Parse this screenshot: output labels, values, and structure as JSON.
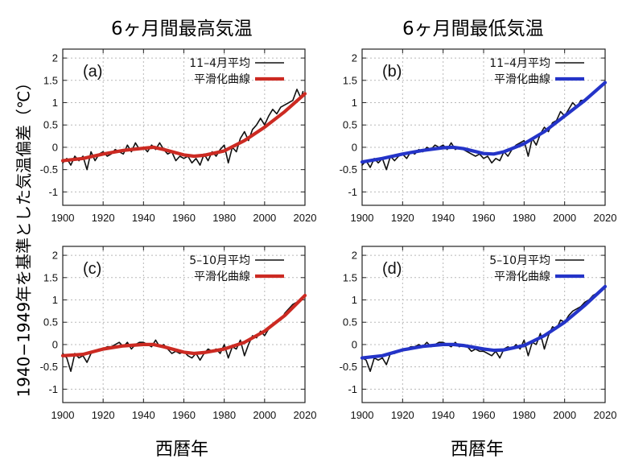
{
  "column_titles": [
    "6ヶ月間最高気温",
    "6ヶ月間最低気温"
  ],
  "xlabel": "西暦年",
  "ylabel": "1940−1949年を基準とした気温偏差（℃）",
  "colors": {
    "raw": "#111111",
    "smooth_red": "#cc2a22",
    "smooth_blue": "#2434c8",
    "grid": "#b8b8b8"
  },
  "chart_data": [
    {
      "type": "line",
      "panel": "(a)",
      "xlim": [
        1900,
        2020
      ],
      "ylim": [
        -1.3,
        2.2
      ],
      "x_ticks": [
        "1900",
        "1920",
        "1940",
        "1960",
        "1980",
        "2000",
        "2020"
      ],
      "y_ticks": [
        "2",
        "1.5",
        "1",
        "0.5",
        "0",
        "-0.5",
        "-1"
      ],
      "legend": [
        "11–4月平均",
        "平滑化曲線"
      ],
      "series": [
        {
          "name": "11–4月平均",
          "color": "#111111",
          "x": [
            1900,
            1902,
            1904,
            1906,
            1908,
            1910,
            1912,
            1914,
            1916,
            1918,
            1920,
            1922,
            1924,
            1926,
            1928,
            1930,
            1932,
            1934,
            1936,
            1938,
            1940,
            1942,
            1944,
            1946,
            1948,
            1950,
            1952,
            1954,
            1956,
            1958,
            1960,
            1962,
            1964,
            1966,
            1968,
            1970,
            1972,
            1974,
            1976,
            1978,
            1980,
            1982,
            1984,
            1986,
            1988,
            1990,
            1992,
            1994,
            1996,
            1998,
            2000,
            2002,
            2004,
            2006,
            2008,
            2010,
            2012,
            2014,
            2016,
            2018,
            2019
          ],
          "y": [
            -0.35,
            -0.25,
            -0.4,
            -0.2,
            -0.3,
            -0.2,
            -0.5,
            -0.1,
            -0.3,
            -0.15,
            -0.1,
            -0.2,
            -0.15,
            -0.05,
            -0.1,
            -0.15,
            0.05,
            -0.1,
            0.1,
            -0.05,
            0.0,
            -0.1,
            0.05,
            -0.05,
            0.1,
            -0.05,
            -0.15,
            -0.1,
            -0.3,
            -0.2,
            -0.25,
            -0.2,
            -0.35,
            -0.25,
            -0.4,
            -0.15,
            -0.3,
            -0.1,
            -0.2,
            -0.05,
            0.05,
            -0.35,
            0.0,
            -0.1,
            0.2,
            0.35,
            0.15,
            0.4,
            0.5,
            0.65,
            0.5,
            0.7,
            0.85,
            0.75,
            0.9,
            0.95,
            1.0,
            1.05,
            1.3,
            1.1,
            1.25
          ]
        },
        {
          "name": "平滑化曲線",
          "color": "#cc2a22",
          "x": [
            1900,
            1910,
            1920,
            1930,
            1940,
            1945,
            1950,
            1960,
            1965,
            1970,
            1980,
            1990,
            2000,
            2010,
            2020
          ],
          "y": [
            -0.3,
            -0.25,
            -0.15,
            -0.07,
            -0.02,
            0.0,
            -0.05,
            -0.17,
            -0.2,
            -0.18,
            -0.08,
            0.15,
            0.45,
            0.8,
            1.2
          ]
        }
      ]
    },
    {
      "type": "line",
      "panel": "(b)",
      "xlim": [
        1900,
        2020
      ],
      "ylim": [
        -1.3,
        2.2
      ],
      "x_ticks": [
        "1900",
        "1920",
        "1940",
        "1960",
        "1980",
        "2000",
        "2020"
      ],
      "y_ticks": [
        "2",
        "1.5",
        "1",
        "0.5",
        "0",
        "-0.5",
        "-1"
      ],
      "legend": [
        "11–4月平均",
        "平滑化曲線"
      ],
      "series": [
        {
          "name": "11–4月平均",
          "color": "#111111",
          "x": [
            1900,
            1902,
            1904,
            1906,
            1908,
            1910,
            1912,
            1914,
            1916,
            1918,
            1920,
            1922,
            1924,
            1926,
            1928,
            1930,
            1932,
            1934,
            1936,
            1938,
            1940,
            1942,
            1944,
            1946,
            1948,
            1950,
            1952,
            1954,
            1956,
            1958,
            1960,
            1962,
            1964,
            1966,
            1968,
            1970,
            1972,
            1974,
            1976,
            1978,
            1980,
            1982,
            1984,
            1986,
            1988,
            1990,
            1992,
            1994,
            1996,
            1998,
            2000,
            2002,
            2004,
            2006,
            2008,
            2010,
            2012,
            2014,
            2016,
            2018,
            2020
          ],
          "y": [
            -0.4,
            -0.3,
            -0.45,
            -0.25,
            -0.35,
            -0.25,
            -0.5,
            -0.2,
            -0.3,
            -0.2,
            -0.15,
            -0.25,
            -0.1,
            -0.15,
            -0.05,
            -0.1,
            0.0,
            -0.05,
            0.05,
            0.0,
            0.05,
            -0.05,
            0.1,
            -0.05,
            0.0,
            -0.05,
            -0.1,
            -0.15,
            -0.2,
            -0.15,
            -0.25,
            -0.2,
            -0.35,
            -0.25,
            -0.3,
            -0.1,
            -0.2,
            -0.05,
            0.05,
            0.1,
            0.15,
            -0.2,
            0.2,
            0.05,
            0.3,
            0.45,
            0.35,
            0.55,
            0.6,
            0.8,
            0.7,
            0.85,
            1.0,
            0.9,
            1.05,
            1.05,
            1.15,
            1.2,
            1.3,
            1.35,
            1.45
          ]
        },
        {
          "name": "平滑化曲線",
          "color": "#2434c8",
          "x": [
            1900,
            1910,
            1920,
            1930,
            1940,
            1945,
            1950,
            1960,
            1965,
            1970,
            1980,
            1990,
            2000,
            2010,
            2020
          ],
          "y": [
            -0.33,
            -0.25,
            -0.15,
            -0.07,
            -0.01,
            0.0,
            -0.03,
            -0.14,
            -0.15,
            -0.1,
            0.08,
            0.35,
            0.7,
            1.05,
            1.45
          ]
        }
      ]
    },
    {
      "type": "line",
      "panel": "(c)",
      "xlim": [
        1900,
        2020
      ],
      "ylim": [
        -1.3,
        2.2
      ],
      "x_ticks": [
        "1900",
        "1920",
        "1940",
        "1960",
        "1980",
        "2000",
        "2020"
      ],
      "y_ticks": [
        "2",
        "1.5",
        "1",
        "0.5",
        "0",
        "-0.5",
        "-1"
      ],
      "legend": [
        "5–10月平均",
        "平滑化曲線"
      ],
      "series": [
        {
          "name": "5–10月平均",
          "color": "#111111",
          "x": [
            1900,
            1902,
            1904,
            1906,
            1908,
            1910,
            1912,
            1914,
            1916,
            1918,
            1920,
            1922,
            1924,
            1926,
            1928,
            1930,
            1932,
            1934,
            1936,
            1938,
            1940,
            1942,
            1944,
            1946,
            1948,
            1950,
            1952,
            1954,
            1956,
            1958,
            1960,
            1962,
            1964,
            1966,
            1968,
            1970,
            1972,
            1974,
            1976,
            1978,
            1980,
            1982,
            1984,
            1986,
            1988,
            1990,
            1992,
            1994,
            1996,
            1998,
            2000,
            2002,
            2004,
            2006,
            2008,
            2010,
            2012,
            2014,
            2016,
            2018,
            2020
          ],
          "y": [
            -0.2,
            -0.3,
            -0.6,
            -0.2,
            -0.3,
            -0.25,
            -0.4,
            -0.2,
            -0.15,
            -0.1,
            -0.1,
            -0.05,
            -0.05,
            0.0,
            0.05,
            -0.05,
            0.05,
            -0.1,
            0.0,
            0.05,
            0.05,
            0.0,
            -0.05,
            0.1,
            -0.05,
            0.0,
            -0.1,
            -0.2,
            -0.15,
            -0.2,
            -0.15,
            -0.25,
            -0.3,
            -0.2,
            -0.35,
            -0.2,
            -0.1,
            -0.15,
            -0.1,
            -0.2,
            0.0,
            -0.3,
            -0.05,
            -0.1,
            0.1,
            -0.25,
            0.0,
            0.2,
            0.15,
            0.3,
            0.2,
            0.35,
            0.45,
            0.5,
            0.55,
            0.7,
            0.8,
            0.9,
            0.95,
            1.0,
            1.1
          ]
        },
        {
          "name": "平滑化曲線",
          "color": "#cc2a22",
          "x": [
            1900,
            1910,
            1920,
            1930,
            1940,
            1945,
            1950,
            1960,
            1965,
            1970,
            1980,
            1990,
            2000,
            2010,
            2020
          ],
          "y": [
            -0.25,
            -0.22,
            -0.1,
            -0.03,
            0.0,
            0.0,
            -0.05,
            -0.17,
            -0.2,
            -0.18,
            -0.1,
            0.05,
            0.3,
            0.65,
            1.1
          ]
        }
      ]
    },
    {
      "type": "line",
      "panel": "(d)",
      "xlim": [
        1900,
        2020
      ],
      "ylim": [
        -1.3,
        2.2
      ],
      "x_ticks": [
        "1900",
        "1920",
        "1940",
        "1960",
        "1980",
        "2000",
        "2020"
      ],
      "y_ticks": [
        "2",
        "1.5",
        "1",
        "0.5",
        "0",
        "-0.5",
        "-1"
      ],
      "legend": [
        "5–10月平均",
        "平滑化曲線"
      ],
      "series": [
        {
          "name": "5–10月平均",
          "color": "#111111",
          "x": [
            1900,
            1902,
            1904,
            1906,
            1908,
            1910,
            1912,
            1914,
            1916,
            1918,
            1920,
            1922,
            1924,
            1926,
            1928,
            1930,
            1932,
            1934,
            1936,
            1938,
            1940,
            1942,
            1944,
            1946,
            1948,
            1950,
            1952,
            1954,
            1956,
            1958,
            1960,
            1962,
            1964,
            1966,
            1968,
            1970,
            1972,
            1974,
            1976,
            1978,
            1980,
            1982,
            1984,
            1986,
            1988,
            1990,
            1992,
            1994,
            1996,
            1998,
            2000,
            2002,
            2004,
            2006,
            2008,
            2010,
            2012,
            2014,
            2016,
            2018,
            2020
          ],
          "y": [
            -0.3,
            -0.35,
            -0.6,
            -0.3,
            -0.35,
            -0.3,
            -0.45,
            -0.2,
            -0.2,
            -0.15,
            -0.1,
            -0.1,
            -0.05,
            -0.05,
            0.0,
            -0.05,
            0.05,
            -0.05,
            0.0,
            0.05,
            0.05,
            0.0,
            -0.05,
            0.05,
            -0.05,
            0.0,
            -0.05,
            -0.15,
            -0.1,
            -0.15,
            -0.15,
            -0.2,
            -0.25,
            -0.15,
            -0.3,
            -0.1,
            -0.05,
            -0.1,
            0.0,
            -0.1,
            0.1,
            -0.25,
            0.05,
            0.0,
            0.25,
            -0.1,
            0.2,
            0.4,
            0.35,
            0.55,
            0.5,
            0.65,
            0.75,
            0.8,
            0.85,
            0.95,
            1.0,
            1.1,
            1.15,
            1.2,
            1.3
          ]
        },
        {
          "name": "平滑化曲線",
          "color": "#2434c8",
          "x": [
            1900,
            1910,
            1920,
            1930,
            1940,
            1945,
            1950,
            1960,
            1965,
            1970,
            1980,
            1990,
            2000,
            2010,
            2020
          ],
          "y": [
            -0.3,
            -0.25,
            -0.12,
            -0.04,
            0.0,
            0.0,
            -0.02,
            -0.1,
            -0.13,
            -0.12,
            -0.02,
            0.2,
            0.5,
            0.88,
            1.3
          ]
        }
      ]
    }
  ]
}
